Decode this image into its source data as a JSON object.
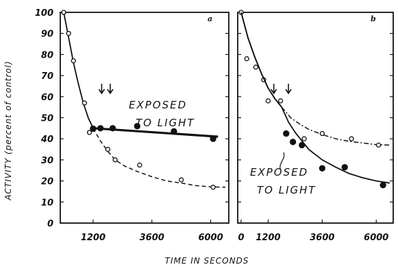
{
  "figure": {
    "ylabel": "ACTIVITY (percent of control)",
    "xlabel": "TIME IN SECONDS"
  },
  "chart_data": [
    {
      "panel_label": "a",
      "type": "line",
      "annotation": [
        "EXPOSED",
        "TO LIGHT"
      ],
      "xlim": [
        0,
        6600
      ],
      "ylim": [
        0,
        100
      ],
      "x_ticks": [
        1200,
        3600,
        6000
      ],
      "y_ticks": [
        0,
        10,
        20,
        30,
        40,
        50,
        60,
        70,
        80,
        90,
        100
      ],
      "arrows_x": [
        1550,
        1900
      ],
      "series": [
        {
          "style": "open-circles-solid-then-dashed",
          "points": [
            [
              0,
              100
            ],
            [
              200,
              90
            ],
            [
              400,
              77
            ],
            [
              850,
              57
            ],
            [
              1050,
              43
            ],
            [
              1800,
              35
            ],
            [
              2100,
              30
            ],
            [
              3100,
              27.5
            ],
            [
              4800,
              20.5
            ],
            [
              6100,
              17
            ]
          ],
          "fit_solid": [
            [
              0,
              100
            ],
            [
              200,
              88
            ],
            [
              400,
              76
            ],
            [
              600,
              66
            ],
            [
              800,
              57
            ],
            [
              1000,
              50
            ],
            [
              1200,
              45
            ]
          ],
          "fit_dashed": [
            [
              1200,
              45
            ],
            [
              1500,
              39
            ],
            [
              1800,
              34
            ],
            [
              2100,
              30
            ],
            [
              2500,
              27
            ],
            [
              3000,
              24.5
            ],
            [
              3600,
              22
            ],
            [
              4200,
              20
            ],
            [
              4800,
              19
            ],
            [
              5400,
              17.8
            ],
            [
              6000,
              17.2
            ],
            [
              6600,
              17
            ]
          ]
        },
        {
          "style": "filled-circles-thick-solid",
          "points": [
            [
              1200,
              44.8
            ],
            [
              1500,
              45
            ],
            [
              2000,
              45
            ],
            [
              3000,
              46
            ],
            [
              4500,
              43.5
            ],
            [
              6100,
              40
            ]
          ],
          "fit": [
            [
              1200,
              45
            ],
            [
              6300,
              41
            ]
          ]
        }
      ]
    },
    {
      "panel_label": "b",
      "type": "line",
      "annotation": [
        "EXPOSED",
        "TO LIGHT"
      ],
      "xlim": [
        0,
        6600
      ],
      "ylim": [
        0,
        100
      ],
      "x_ticks": [
        0,
        1200,
        3600,
        6000
      ],
      "y_ticks": [
        0,
        10,
        20,
        30,
        40,
        50,
        60,
        70,
        80,
        90,
        100
      ],
      "arrows_x": [
        1450,
        2100
      ],
      "series": [
        {
          "style": "open-circles-solid-then-dashdot",
          "points": [
            [
              0,
              100
            ],
            [
              250,
              78
            ],
            [
              650,
              74
            ],
            [
              1000,
              68
            ],
            [
              1200,
              58
            ],
            [
              1750,
              58
            ],
            [
              2800,
              40
            ],
            [
              3600,
              42.5
            ],
            [
              4900,
              40
            ],
            [
              6100,
              37
            ]
          ],
          "fit_solid": [
            [
              0,
              100
            ],
            [
              300,
              88
            ],
            [
              600,
              79
            ],
            [
              900,
              71
            ],
            [
              1200,
              64
            ],
            [
              1500,
              59
            ],
            [
              1800,
              55
            ]
          ],
          "fit_dashed": [
            [
              1800,
              55
            ],
            [
              2200,
              50
            ],
            [
              2600,
              47
            ],
            [
              3000,
              44.5
            ],
            [
              3600,
              42
            ],
            [
              4200,
              40
            ],
            [
              4800,
              38.8
            ],
            [
              5400,
              38
            ],
            [
              6000,
              37.2
            ],
            [
              6600,
              37
            ]
          ]
        },
        {
          "style": "filled-circles-solid",
          "points": [
            [
              2000,
              42.5
            ],
            [
              2300,
              38.5
            ],
            [
              2700,
              37
            ],
            [
              3600,
              26
            ],
            [
              4600,
              26.5
            ],
            [
              6300,
              18
            ]
          ],
          "fit": [
            [
              0,
              100
            ],
            [
              300,
              88
            ],
            [
              600,
              79
            ],
            [
              900,
              71
            ],
            [
              1200,
              64
            ],
            [
              1500,
              59
            ],
            [
              1800,
              55
            ],
            [
              2100,
              48
            ],
            [
              2400,
              43
            ],
            [
              2700,
              39
            ],
            [
              3000,
              35
            ],
            [
              3600,
              30
            ],
            [
              4200,
              26.5
            ],
            [
              4800,
              23.5
            ],
            [
              5400,
              21.5
            ],
            [
              6000,
              20
            ],
            [
              6600,
              19
            ]
          ]
        }
      ]
    }
  ]
}
